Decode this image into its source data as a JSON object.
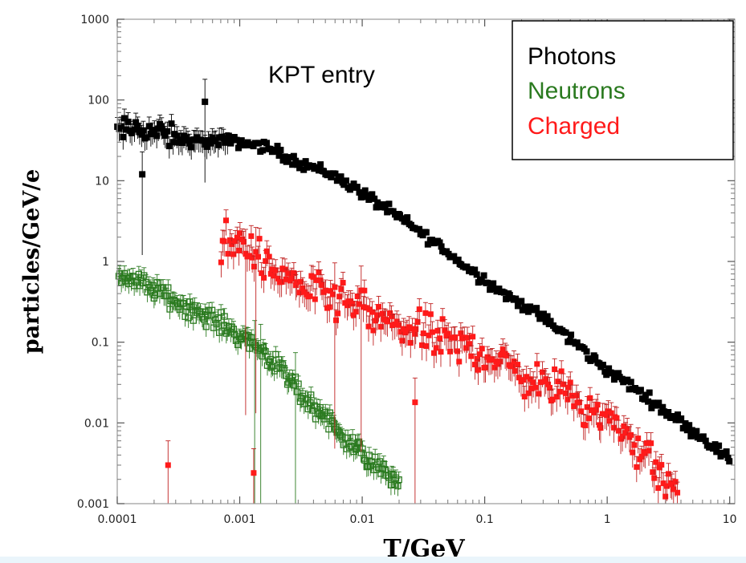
{
  "chart_data": {
    "type": "scatter",
    "title": "",
    "annotation": "KPT entry",
    "xlabel": "T/GeV",
    "ylabel": "particles/GeV/e",
    "x_scale": "log",
    "y_scale": "log",
    "xlim": [
      0.0001,
      11
    ],
    "ylim": [
      0.001,
      1000
    ],
    "x_ticks": [
      0.0001,
      0.001,
      0.01,
      0.1,
      1,
      10
    ],
    "x_tick_labels": [
      "0.0001",
      "0.001",
      "0.01",
      "0.1",
      "1",
      "10"
    ],
    "y_ticks": [
      0.001,
      0.01,
      0.1,
      1,
      10,
      100,
      1000
    ],
    "y_tick_labels": [
      "0.001",
      "0.01",
      "0.1",
      "1",
      "10",
      "100",
      "1000"
    ],
    "grid": false,
    "legend_position": "top-right",
    "legend": [
      {
        "name": "Photons",
        "color": "#000000"
      },
      {
        "name": "Neutrons",
        "color": "#2a7a1f"
      },
      {
        "name": "Charged",
        "color": "#ff1a1a"
      }
    ],
    "series": [
      {
        "name": "Photons",
        "marker": "filled-square",
        "color": "#000000",
        "x": [
          0.0001,
          0.00015,
          0.0002,
          0.0003,
          0.0005,
          0.0007,
          0.001,
          0.0015,
          0.002,
          0.003,
          0.005,
          0.007,
          0.01,
          0.015,
          0.02,
          0.03,
          0.05,
          0.07,
          0.1,
          0.15,
          0.2,
          0.3,
          0.5,
          0.7,
          1,
          1.5,
          2,
          3,
          5,
          7,
          10
        ],
        "y": [
          40,
          45,
          40,
          33,
          30,
          31,
          30,
          27,
          23,
          17,
          13,
          10,
          7,
          4.7,
          3.5,
          2.3,
          1.3,
          0.85,
          0.6,
          0.38,
          0.3,
          0.2,
          0.11,
          0.07,
          0.045,
          0.03,
          0.022,
          0.014,
          0.008,
          0.0055,
          0.0035
        ],
        "outliers": [
          {
            "x": 0.00016,
            "y": 12
          },
          {
            "x": 0.00052,
            "y": 95
          }
        ]
      },
      {
        "name": "Neutrons",
        "marker": "open-square",
        "color": "#2a7a1f",
        "x": [
          0.0001,
          0.00015,
          0.0002,
          0.0003,
          0.0005,
          0.0007,
          0.001,
          0.0015,
          0.002,
          0.003,
          0.005,
          0.007,
          0.01,
          0.015,
          0.02
        ],
        "y": [
          0.7,
          0.55,
          0.45,
          0.32,
          0.22,
          0.17,
          0.12,
          0.08,
          0.05,
          0.025,
          0.012,
          0.007,
          0.004,
          0.0025,
          0.0018
        ]
      },
      {
        "name": "Charged",
        "marker": "filled-square",
        "color": "#ff1a1a",
        "x": [
          0.0007,
          0.001,
          0.0015,
          0.002,
          0.003,
          0.005,
          0.007,
          0.01,
          0.015,
          0.02,
          0.03,
          0.05,
          0.07,
          0.1,
          0.15,
          0.2,
          0.3,
          0.5,
          0.7,
          1,
          1.5,
          2,
          3,
          4
        ],
        "y": [
          1.5,
          1.8,
          1.0,
          0.7,
          0.55,
          0.35,
          0.3,
          0.25,
          0.18,
          0.15,
          0.13,
          0.1,
          0.085,
          0.075,
          0.05,
          0.04,
          0.03,
          0.022,
          0.016,
          0.011,
          0.007,
          0.004,
          0.002,
          0.0012
        ],
        "outliers": [
          {
            "x": 0.00026,
            "y": 0.003
          },
          {
            "x": 0.0013,
            "y": 0.0024
          },
          {
            "x": 0.027,
            "y": 0.018
          }
        ]
      }
    ]
  }
}
